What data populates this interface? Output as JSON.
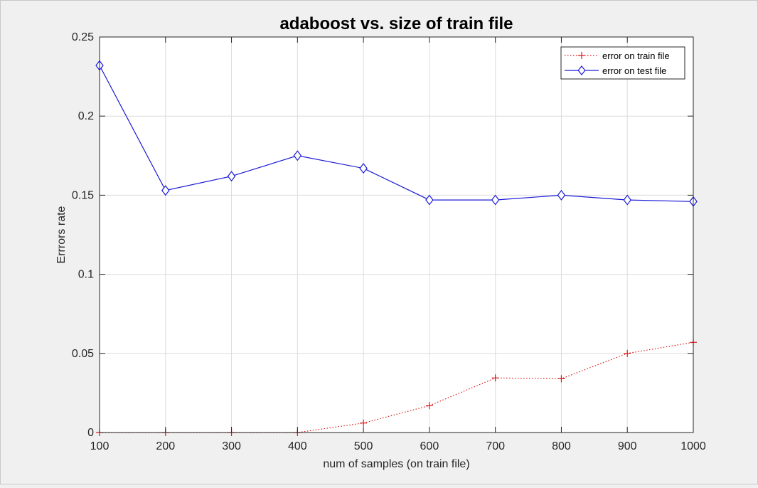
{
  "chart_data": {
    "type": "line",
    "title": "adaboost vs. size of train file",
    "xlabel": "num of samples (on train file)",
    "ylabel": "Errrors rate",
    "xlim": [
      100,
      1000
    ],
    "ylim": [
      0,
      0.25
    ],
    "xticks": [
      100,
      200,
      300,
      400,
      500,
      600,
      700,
      800,
      900,
      1000
    ],
    "xtick_labels": [
      "100",
      "200",
      "300",
      "400",
      "500",
      "600",
      "700",
      "800",
      "900",
      "1000"
    ],
    "yticks": [
      0,
      0.05,
      0.1,
      0.15,
      0.2,
      0.25
    ],
    "ytick_labels": [
      "0",
      "0.05",
      "0.1",
      "0.15",
      "0.2",
      "0.25"
    ],
    "grid": true,
    "legend_position": "top-right",
    "x": [
      100,
      200,
      300,
      400,
      500,
      600,
      700,
      800,
      900,
      1000
    ],
    "series": [
      {
        "name": "error on train file",
        "values": [
          0,
          0,
          0,
          0,
          0.006,
          0.017,
          0.0345,
          0.034,
          0.05,
          0.057
        ],
        "color": "#d81b1b",
        "line_style": "dotted",
        "marker": "plus"
      },
      {
        "name": "error on test file",
        "values": [
          0.232,
          0.153,
          0.162,
          0.175,
          0.167,
          0.147,
          0.147,
          0.15,
          0.147,
          0.146
        ],
        "color": "#1a1ad6",
        "line_style": "solid",
        "marker": "diamond"
      }
    ]
  }
}
